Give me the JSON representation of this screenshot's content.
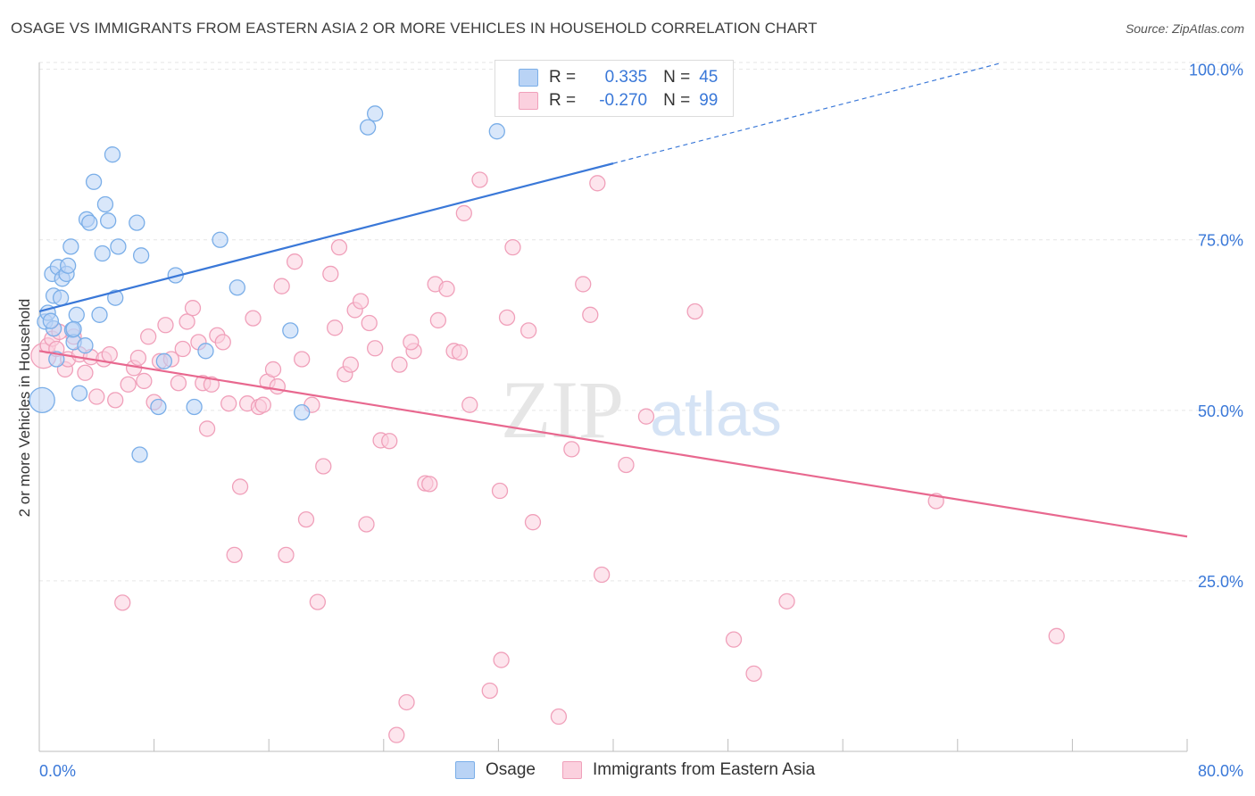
{
  "title": "OSAGE VS IMMIGRANTS FROM EASTERN ASIA 2 OR MORE VEHICLES IN HOUSEHOLD CORRELATION CHART",
  "source": "Source: ZipAtlas.com",
  "watermark": {
    "zip": "ZIP",
    "atlas": "atlas"
  },
  "stats": [
    {
      "r_label": "R =",
      "r_value": "0.335",
      "n_label": "N =",
      "n_value": "45",
      "color": "#7aaee8",
      "fill": "#b9d3f5"
    },
    {
      "r_label": "R =",
      "r_value": "-0.270",
      "n_label": "N =",
      "n_value": "99",
      "color": "#f0a0ba",
      "fill": "#fbd0de"
    }
  ],
  "legend": [
    {
      "label": "Osage",
      "color": "#7aaee8",
      "fill": "#b9d3f5"
    },
    {
      "label": "Immigrants from Eastern Asia",
      "color": "#f0a0ba",
      "fill": "#fbd0de"
    }
  ],
  "chart_data": {
    "type": "scatter",
    "title": "OSAGE VS IMMIGRANTS FROM EASTERN ASIA 2 OR MORE VEHICLES IN HOUSEHOLD CORRELATION CHART",
    "xlabel": "",
    "ylabel": "2 or more Vehicles in Household",
    "xlim": [
      0,
      80
    ],
    "ylim": [
      0,
      101
    ],
    "x_tick_labels": [
      "0.0%",
      "80.0%"
    ],
    "y_ticks": [
      25,
      50,
      75,
      100
    ],
    "y_tick_labels": [
      "25.0%",
      "50.0%",
      "75.0%",
      "100.0%"
    ],
    "grid": true,
    "legend_position": "bottom",
    "series": [
      {
        "name": "Osage",
        "color": "#3a78d8",
        "marker_fill": "#b9d3f5",
        "marker_stroke": "#7aaee8",
        "trend": {
          "x": [
            0,
            40
          ],
          "y": [
            64.5,
            86.2
          ],
          "dashed_to": [
            67,
            100.9
          ]
        },
        "points": [
          [
            0.2,
            51.5
          ],
          [
            0.4,
            63.0
          ],
          [
            0.6,
            64.3
          ],
          [
            0.9,
            70.0
          ],
          [
            1.0,
            66.8
          ],
          [
            1.3,
            71.0
          ],
          [
            1.0,
            62.0
          ],
          [
            1.2,
            57.5
          ],
          [
            1.5,
            66.5
          ],
          [
            1.6,
            69.3
          ],
          [
            1.9,
            70.0
          ],
          [
            2.0,
            71.2
          ],
          [
            2.2,
            74.0
          ],
          [
            2.3,
            61.8
          ],
          [
            2.4,
            60.0
          ],
          [
            2.6,
            64.0
          ],
          [
            2.8,
            52.5
          ],
          [
            3.2,
            59.5
          ],
          [
            3.3,
            78.0
          ],
          [
            3.5,
            77.5
          ],
          [
            3.8,
            83.5
          ],
          [
            4.2,
            64.0
          ],
          [
            4.4,
            73.0
          ],
          [
            4.6,
            80.2
          ],
          [
            4.8,
            77.8
          ],
          [
            5.1,
            87.5
          ],
          [
            5.3,
            66.5
          ],
          [
            5.5,
            74.0
          ],
          [
            6.8,
            77.5
          ],
          [
            7.1,
            72.7
          ],
          [
            7.0,
            43.5
          ],
          [
            8.3,
            50.5
          ],
          [
            8.7,
            57.2
          ],
          [
            9.5,
            69.8
          ],
          [
            10.8,
            50.5
          ],
          [
            11.6,
            58.7
          ],
          [
            12.6,
            75.0
          ],
          [
            13.8,
            68.0
          ],
          [
            17.5,
            61.7
          ],
          [
            18.3,
            49.7
          ],
          [
            22.9,
            91.5
          ],
          [
            23.4,
            93.5
          ],
          [
            31.9,
            90.9
          ],
          [
            2.4,
            61.9
          ],
          [
            0.8,
            63.1
          ]
        ]
      },
      {
        "name": "Immigrants from Eastern Asia",
        "color": "#e8688f",
        "marker_fill": "#fbd0de",
        "marker_stroke": "#f0a0ba",
        "trend": {
          "x": [
            0,
            80
          ],
          "y": [
            58.7,
            31.5
          ]
        },
        "points": [
          [
            0.3,
            58.0
          ],
          [
            0.6,
            59.5
          ],
          [
            0.9,
            60.5
          ],
          [
            1.2,
            59.0
          ],
          [
            1.4,
            61.5
          ],
          [
            1.8,
            56.0
          ],
          [
            2.0,
            57.5
          ],
          [
            2.4,
            60.8
          ],
          [
            2.8,
            58.2
          ],
          [
            3.2,
            55.5
          ],
          [
            3.6,
            57.8
          ],
          [
            4.0,
            52.0
          ],
          [
            4.5,
            57.5
          ],
          [
            4.9,
            58.2
          ],
          [
            5.3,
            51.5
          ],
          [
            5.8,
            21.8
          ],
          [
            6.2,
            53.8
          ],
          [
            6.6,
            56.2
          ],
          [
            6.9,
            57.7
          ],
          [
            7.3,
            54.3
          ],
          [
            7.6,
            60.8
          ],
          [
            8.0,
            51.2
          ],
          [
            8.4,
            57.2
          ],
          [
            8.8,
            62.5
          ],
          [
            9.2,
            57.5
          ],
          [
            9.7,
            54.0
          ],
          [
            10.0,
            59.0
          ],
          [
            10.3,
            63.0
          ],
          [
            10.7,
            65.0
          ],
          [
            11.1,
            60.0
          ],
          [
            11.4,
            54.0
          ],
          [
            11.7,
            47.3
          ],
          [
            12.0,
            53.8
          ],
          [
            12.4,
            61.0
          ],
          [
            12.8,
            60.0
          ],
          [
            13.2,
            51.0
          ],
          [
            13.6,
            28.8
          ],
          [
            14.0,
            38.8
          ],
          [
            14.5,
            51.0
          ],
          [
            14.9,
            63.5
          ],
          [
            15.3,
            50.5
          ],
          [
            15.6,
            50.8
          ],
          [
            15.9,
            54.2
          ],
          [
            16.3,
            56.0
          ],
          [
            16.6,
            53.5
          ],
          [
            16.9,
            68.2
          ],
          [
            17.2,
            28.8
          ],
          [
            17.8,
            71.8
          ],
          [
            18.3,
            57.5
          ],
          [
            18.6,
            34.0
          ],
          [
            19.0,
            50.8
          ],
          [
            19.4,
            21.9
          ],
          [
            19.8,
            41.8
          ],
          [
            20.3,
            70.0
          ],
          [
            20.6,
            62.1
          ],
          [
            20.9,
            73.9
          ],
          [
            21.3,
            55.3
          ],
          [
            21.7,
            56.7
          ],
          [
            22.0,
            64.7
          ],
          [
            22.4,
            66.0
          ],
          [
            22.8,
            33.3
          ],
          [
            23.0,
            62.8
          ],
          [
            23.4,
            59.1
          ],
          [
            23.8,
            45.6
          ],
          [
            24.4,
            45.5
          ],
          [
            24.9,
            2.4
          ],
          [
            25.1,
            56.7
          ],
          [
            25.6,
            7.2
          ],
          [
            26.1,
            58.7
          ],
          [
            26.9,
            39.3
          ],
          [
            27.2,
            39.2
          ],
          [
            27.6,
            68.5
          ],
          [
            27.8,
            63.2
          ],
          [
            28.4,
            67.8
          ],
          [
            28.9,
            58.7
          ],
          [
            29.3,
            58.5
          ],
          [
            29.6,
            78.9
          ],
          [
            30.0,
            50.8
          ],
          [
            30.7,
            83.8
          ],
          [
            31.4,
            8.9
          ],
          [
            32.1,
            38.2
          ],
          [
            32.2,
            13.4
          ],
          [
            32.6,
            63.6
          ],
          [
            33.0,
            73.9
          ],
          [
            34.1,
            61.7
          ],
          [
            34.4,
            33.6
          ],
          [
            36.2,
            5.1
          ],
          [
            37.1,
            44.3
          ],
          [
            37.9,
            68.5
          ],
          [
            38.4,
            64.0
          ],
          [
            38.9,
            83.3
          ],
          [
            39.2,
            25.9
          ],
          [
            40.9,
            42.0
          ],
          [
            42.3,
            49.1
          ],
          [
            45.7,
            64.5
          ],
          [
            48.4,
            16.4
          ],
          [
            49.8,
            11.4
          ],
          [
            52.1,
            22.0
          ],
          [
            62.5,
            36.7
          ],
          [
            70.9,
            16.9
          ],
          [
            25.9,
            60.0
          ]
        ]
      }
    ]
  }
}
